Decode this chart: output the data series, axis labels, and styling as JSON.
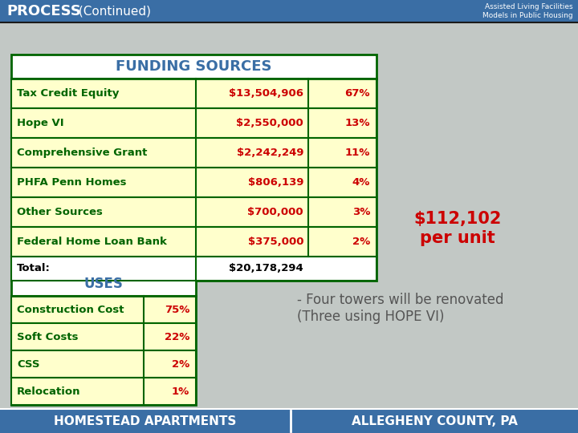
{
  "title_left": "PROCESS",
  "title_left_normal": " (Continued)",
  "title_right_line1": "Assisted Living Facilities",
  "title_right_line2": "Models in Public Housing",
  "header_bg": "#3a6ea5",
  "funding_header": "FUNDING SOURCES",
  "funding_rows": [
    {
      "label": "Tax Credit Equity",
      "amount": "$13,504,906",
      "pct": "67%"
    },
    {
      "label": "Hope VI",
      "amount": "$2,550,000",
      "pct": "13%"
    },
    {
      "label": "Comprehensive Grant",
      "amount": "$2,242,249",
      "pct": "11%"
    },
    {
      "label": "PHFA Penn Homes",
      "amount": "$806,139",
      "pct": "4%"
    },
    {
      "label": "Other Sources",
      "amount": "$700,000",
      "pct": "3%"
    },
    {
      "label": "Federal Home Loan Bank",
      "amount": "$375,000",
      "pct": "2%"
    }
  ],
  "total_label": "Total:",
  "total_amount": "$20,178,294",
  "uses_header": "USES",
  "uses_rows": [
    {
      "label": "Construction Cost",
      "pct": "75%"
    },
    {
      "label": "Soft Costs",
      "pct": "22%"
    },
    {
      "label": "CSS",
      "pct": "2%"
    },
    {
      "label": "Relocation",
      "pct": "1%"
    }
  ],
  "per_unit_text": "$112,102\nper unit",
  "note_text": "- Four towers will be renovated\n(Three using HOPE VI)",
  "footer_left": "HOMESTEAD APARTMENTS",
  "footer_right": "ALLEGHENY COUNTY, PA",
  "footer_bg": "#3a6ea5",
  "table_border": "#006400",
  "row_bg_yellow": "#ffffcc",
  "label_color": "#006400",
  "amount_color": "#cc0000",
  "pct_color": "#cc0000",
  "total_color": "#000000",
  "per_unit_color": "#cc0000",
  "note_color": "#555555",
  "uses_label_color": "#006400",
  "uses_pct_color": "#cc0000",
  "bg_color": "#b8bfc0"
}
